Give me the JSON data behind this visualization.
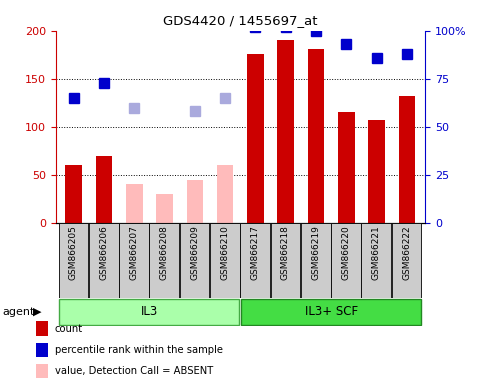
{
  "title": "GDS4420 / 1455697_at",
  "samples": [
    "GSM866205",
    "GSM866206",
    "GSM866207",
    "GSM866208",
    "GSM866209",
    "GSM866210",
    "GSM866217",
    "GSM866218",
    "GSM866219",
    "GSM866220",
    "GSM866221",
    "GSM866222"
  ],
  "count_values": [
    60,
    70,
    null,
    null,
    null,
    null,
    176,
    190,
    181,
    115,
    107,
    132
  ],
  "rank_values": [
    65,
    73,
    null,
    null,
    null,
    null,
    102,
    102,
    100,
    93,
    86,
    88
  ],
  "absent_value": [
    null,
    null,
    40,
    30,
    44,
    60,
    null,
    null,
    null,
    null,
    null,
    null
  ],
  "absent_rank": [
    null,
    null,
    60,
    null,
    58,
    65,
    null,
    null,
    null,
    null,
    null,
    null
  ],
  "groups": [
    {
      "label": "IL3",
      "start": 0,
      "end": 6,
      "color": "#aaffaa",
      "edge": "#44aa44"
    },
    {
      "label": "IL3+ SCF",
      "start": 6,
      "end": 12,
      "color": "#44dd44",
      "edge": "#228822"
    }
  ],
  "ylim_left": [
    0,
    200
  ],
  "ylim_right": [
    0,
    100
  ],
  "yticks_left": [
    0,
    50,
    100,
    150,
    200
  ],
  "yticks_right": [
    0,
    25,
    50,
    75,
    100
  ],
  "ytick_labels_right": [
    "0",
    "25",
    "50",
    "75",
    "100%"
  ],
  "count_color": "#cc0000",
  "rank_color": "#0000cc",
  "absent_val_color": "#ffbbbb",
  "absent_rank_color": "#aaaadd",
  "bar_width": 0.55,
  "marker_size": 7,
  "agent_label": "agent"
}
